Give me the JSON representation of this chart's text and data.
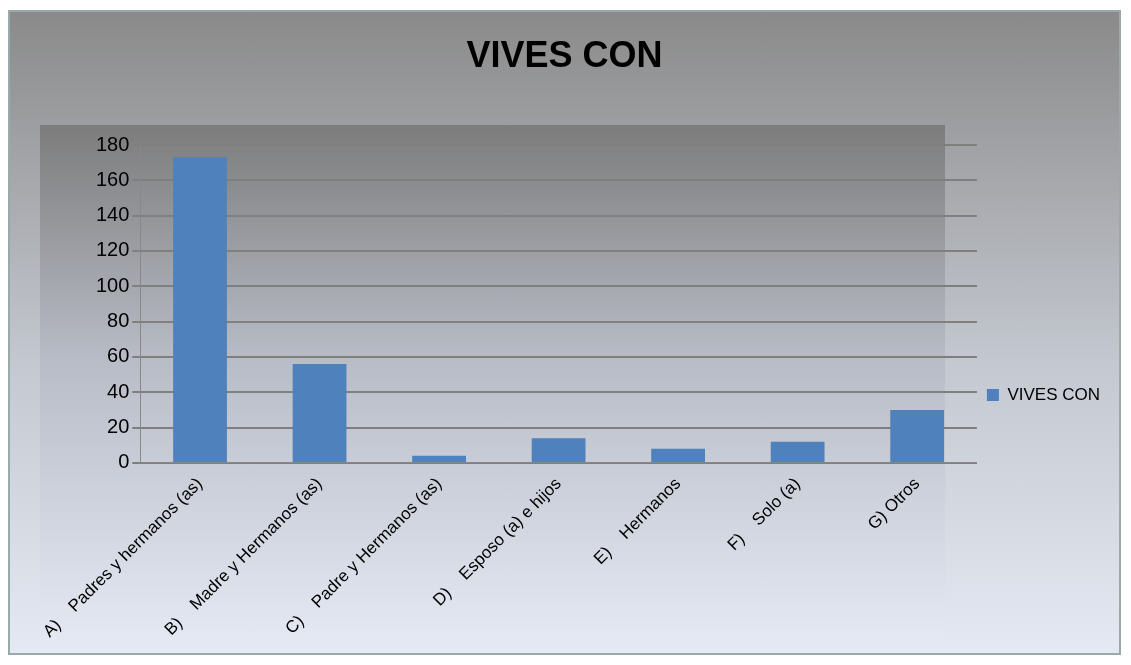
{
  "chart_data": {
    "type": "bar",
    "title": "VIVES CON",
    "categories": [
      "A)    Padres y hermanos (as)",
      "B)    Madre y Hermanos (as)",
      "C)    Padre y Hermanos (as)",
      "D)    Esposo (a) e hijos",
      "E)    Hermanos",
      "F)    Solo (a)",
      "G) Otros"
    ],
    "series": [
      {
        "name": "VIVES CON",
        "color": "#4f81bd",
        "values": [
          173,
          56,
          4,
          14,
          8,
          12,
          30
        ]
      }
    ],
    "ylim": [
      0,
      180
    ],
    "yticks": [
      0,
      20,
      40,
      60,
      80,
      100,
      120,
      140,
      160,
      180
    ],
    "grid": "y",
    "legend": "right"
  }
}
